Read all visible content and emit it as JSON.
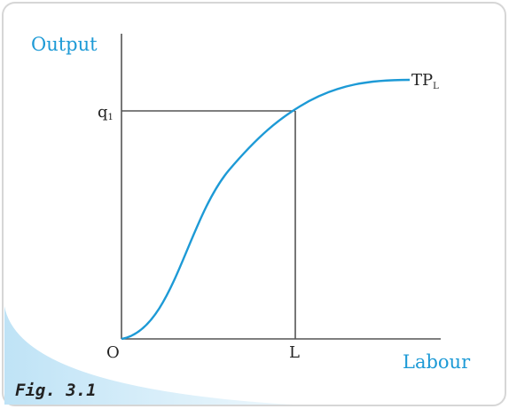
{
  "figure": {
    "y_axis_label": "Output",
    "x_axis_label": "Labour",
    "origin_label": "O",
    "q_label": {
      "main": "q",
      "sub": "1"
    },
    "l_label": "L",
    "curve_label": {
      "main": "TP",
      "sub": "L"
    },
    "caption": "Fig. 3.1"
  }
}
